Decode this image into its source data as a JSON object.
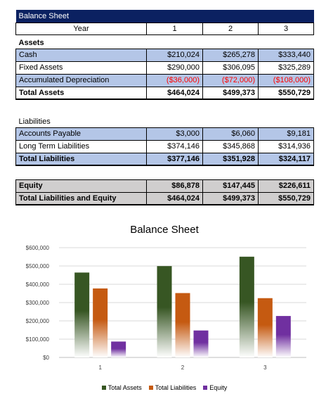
{
  "table": {
    "title": "Balance Sheet",
    "year_label": "Year",
    "years": [
      "1",
      "2",
      "3"
    ],
    "assets_heading": "Assets",
    "assets_rows": [
      {
        "label": "Cash",
        "values": [
          "$210,024",
          "$265,278",
          "$333,440"
        ],
        "negative": false
      },
      {
        "label": "Fixed Assets",
        "values": [
          "$290,000",
          "$306,095",
          "$325,289"
        ],
        "negative": false
      },
      {
        "label": "Accumulated Depreciation",
        "values": [
          "($36,000)",
          "($72,000)",
          "($108,000)"
        ],
        "negative": true
      }
    ],
    "total_assets": {
      "label": "Total Assets",
      "values": [
        "$464,024",
        "$499,373",
        "$550,729"
      ]
    },
    "liabilities_heading": "Liabilities",
    "liabilities_rows": [
      {
        "label": "Accounts Payable",
        "values": [
          "$3,000",
          "$6,060",
          "$9,181"
        ]
      },
      {
        "label": "Long Term Liabilities",
        "values": [
          "$374,146",
          "$345,868",
          "$314,936"
        ]
      }
    ],
    "total_liabilities": {
      "label": "Total Liabilities",
      "values": [
        "$377,146",
        "$351,928",
        "$324,117"
      ]
    },
    "equity": {
      "label": "Equity",
      "values": [
        "$86,878",
        "$147,445",
        "$226,611"
      ]
    },
    "total_le": {
      "label": "Total Liabilities and Equity",
      "values": [
        "$464,024",
        "$499,373",
        "$550,729"
      ]
    }
  },
  "chart_data": {
    "type": "bar",
    "title": "Balance Sheet",
    "categories": [
      "1",
      "2",
      "3"
    ],
    "series": [
      {
        "name": "Total Assets",
        "values": [
          464024,
          499373,
          550729
        ],
        "color": "#375623"
      },
      {
        "name": "Total Liabilities",
        "values": [
          377146,
          351928,
          324117
        ],
        "color": "#c55a11"
      },
      {
        "name": "Equity",
        "values": [
          86878,
          147445,
          226611
        ],
        "color": "#7030a0"
      }
    ],
    "ylim": [
      0,
      600000
    ],
    "yticks": [
      "$0",
      "$100,000",
      "$200,000",
      "$300,000",
      "$400,000",
      "$500,000",
      "$600,000"
    ],
    "grid": true,
    "legend_position": "bottom"
  }
}
